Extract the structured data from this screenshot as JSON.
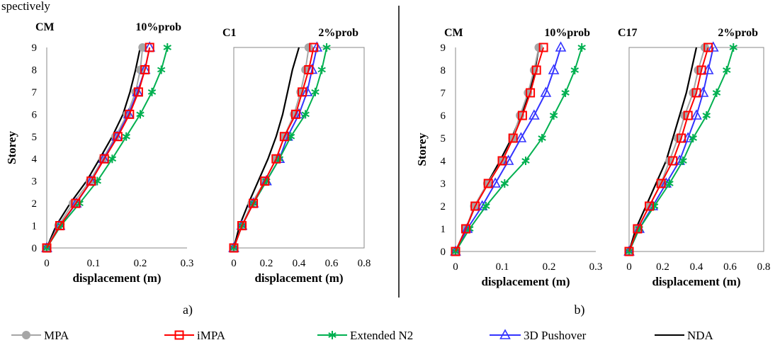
{
  "caption": "spectively",
  "panel_labels": [
    "a)",
    "b)"
  ],
  "legend": [
    {
      "name": "MPA",
      "color": "#a6a6a6",
      "marker": "circle"
    },
    {
      "name": "iMPA",
      "color": "#ff0000",
      "marker": "square"
    },
    {
      "name": "Extended N2",
      "color": "#00b050",
      "marker": "star"
    },
    {
      "name": "3D Pushover",
      "color": "#3333ff",
      "marker": "triangle"
    },
    {
      "name": "NDA",
      "color": "#000000",
      "marker": "none"
    }
  ],
  "chart_data": [
    {
      "type": "line",
      "id": "a1",
      "group": "a",
      "title_left": "CM",
      "title_right": "10%prob",
      "xlabel": "displacement (m)",
      "ylabel": "Storey",
      "xlim": [
        0,
        0.3
      ],
      "xticks": [
        "0",
        "0.1",
        "0.2",
        "0.3"
      ],
      "ylim": [
        0,
        9
      ],
      "yticks": [
        "0",
        "1",
        "2",
        "3",
        "4",
        "5",
        "6",
        "7",
        "8",
        "9"
      ],
      "frame": false,
      "series": [
        {
          "name": "MPA",
          "x": [
            0,
            0.025,
            0.056,
            0.092,
            0.12,
            0.147,
            0.172,
            0.19,
            0.2,
            0.205
          ],
          "y": [
            0,
            1,
            2,
            3,
            4,
            5,
            6,
            7,
            8,
            9
          ]
        },
        {
          "name": "iMPA",
          "x": [
            0,
            0.028,
            0.062,
            0.095,
            0.123,
            0.152,
            0.177,
            0.196,
            0.21,
            0.22
          ],
          "y": [
            0,
            1,
            2,
            3,
            4,
            5,
            6,
            7,
            8,
            9
          ]
        },
        {
          "name": "Extended N2",
          "x": [
            0,
            0.03,
            0.07,
            0.108,
            0.14,
            0.17,
            0.2,
            0.225,
            0.245,
            0.258
          ],
          "y": [
            0,
            1,
            2,
            3,
            4,
            5,
            6,
            7,
            8,
            9
          ]
        },
        {
          "name": "3D Pushover",
          "x": [
            0,
            0.028,
            0.063,
            0.095,
            0.122,
            0.15,
            0.175,
            0.194,
            0.21,
            0.22
          ],
          "y": [
            0,
            1,
            2,
            3,
            4,
            5,
            6,
            7,
            8,
            9
          ]
        },
        {
          "name": "NDA",
          "x": [
            0,
            0.02,
            0.05,
            0.085,
            0.113,
            0.14,
            0.163,
            0.178,
            0.19,
            0.2
          ],
          "y": [
            0,
            1,
            2,
            3,
            4,
            5,
            6,
            7,
            8,
            9
          ]
        }
      ]
    },
    {
      "type": "line",
      "id": "a2",
      "group": "a",
      "title_left": "C1",
      "title_right": "2%prob",
      "xlabel": "displacement (m)",
      "ylabel": "",
      "xlim": [
        0,
        0.8
      ],
      "xticks": [
        "0",
        "0.2",
        "0.4",
        "0.6",
        "0.8"
      ],
      "ylim": [
        0,
        9
      ],
      "yticks": [],
      "frame": true,
      "series": [
        {
          "name": "MPA",
          "x": [
            0,
            0.05,
            0.11,
            0.19,
            0.26,
            0.31,
            0.37,
            0.41,
            0.44,
            0.46
          ],
          "y": [
            0,
            1,
            2,
            3,
            4,
            5,
            6,
            7,
            8,
            9
          ]
        },
        {
          "name": "iMPA",
          "x": [
            0,
            0.05,
            0.12,
            0.19,
            0.26,
            0.31,
            0.38,
            0.42,
            0.46,
            0.49
          ],
          "y": [
            0,
            1,
            2,
            3,
            4,
            5,
            6,
            7,
            8,
            9
          ]
        },
        {
          "name": "Extended N2",
          "x": [
            0,
            0.05,
            0.12,
            0.2,
            0.28,
            0.35,
            0.44,
            0.5,
            0.54,
            0.57
          ],
          "y": [
            0,
            1,
            2,
            3,
            4,
            5,
            6,
            7,
            8,
            9
          ]
        },
        {
          "name": "3D Pushover",
          "x": [
            0,
            0.05,
            0.12,
            0.2,
            0.28,
            0.33,
            0.4,
            0.45,
            0.48,
            0.51
          ],
          "y": [
            0,
            1,
            2,
            3,
            4,
            5,
            6,
            7,
            8,
            9
          ]
        },
        {
          "name": "NDA",
          "x": [
            0,
            0.035,
            0.09,
            0.15,
            0.21,
            0.26,
            0.3,
            0.33,
            0.36,
            0.4
          ],
          "y": [
            0,
            1,
            2,
            3,
            4,
            5,
            6,
            7,
            8,
            9
          ]
        }
      ]
    },
    {
      "type": "line",
      "id": "b1",
      "group": "b",
      "title_left": "CM",
      "title_right": "10%prob",
      "xlabel": "displacement (m)",
      "ylabel": "Storey",
      "xlim": [
        0,
        0.3
      ],
      "xticks": [
        "0",
        "0.1",
        "0.2",
        "0.3"
      ],
      "ylim": [
        0,
        9
      ],
      "yticks": [
        "0",
        "1",
        "2",
        "3",
        "4",
        "5",
        "6",
        "7",
        "8",
        "9"
      ],
      "frame": false,
      "series": [
        {
          "name": "MPA",
          "x": [
            0,
            0.022,
            0.04,
            0.068,
            0.1,
            0.122,
            0.138,
            0.155,
            0.168,
            0.178
          ],
          "y": [
            0,
            1,
            2,
            3,
            4,
            5,
            6,
            7,
            8,
            9
          ]
        },
        {
          "name": "iMPA",
          "x": [
            0,
            0.022,
            0.042,
            0.07,
            0.1,
            0.123,
            0.143,
            0.16,
            0.173,
            0.188
          ],
          "y": [
            0,
            1,
            2,
            3,
            4,
            5,
            6,
            7,
            8,
            9
          ]
        },
        {
          "name": "Extended N2",
          "x": [
            0,
            0.03,
            0.065,
            0.105,
            0.15,
            0.185,
            0.21,
            0.235,
            0.255,
            0.27
          ],
          "y": [
            0,
            1,
            2,
            3,
            4,
            5,
            6,
            7,
            8,
            9
          ]
        },
        {
          "name": "3D Pushover",
          "x": [
            0,
            0.025,
            0.057,
            0.085,
            0.113,
            0.14,
            0.168,
            0.193,
            0.21,
            0.225
          ],
          "y": [
            0,
            1,
            2,
            3,
            4,
            5,
            6,
            7,
            8,
            9
          ]
        },
        {
          "name": "NDA",
          "x": [
            0,
            0.022,
            0.042,
            0.068,
            0.095,
            0.12,
            0.14,
            0.158,
            0.17,
            0.178
          ],
          "y": [
            0,
            1,
            2,
            3,
            4,
            5,
            6,
            7,
            8,
            9
          ]
        }
      ]
    },
    {
      "type": "line",
      "id": "b2",
      "group": "b",
      "title_left": "C17",
      "title_right": "2%prob",
      "xlabel": "displacement (m)",
      "ylabel": "",
      "xlim": [
        0,
        0.8
      ],
      "xticks": [
        "0",
        "0.2",
        "0.4",
        "0.6",
        "0.8"
      ],
      "ylim": [
        0,
        9
      ],
      "yticks": [],
      "frame": true,
      "series": [
        {
          "name": "MPA",
          "x": [
            0,
            0.05,
            0.12,
            0.19,
            0.24,
            0.29,
            0.33,
            0.38,
            0.41,
            0.45
          ],
          "y": [
            0,
            1,
            2,
            3,
            4,
            5,
            6,
            7,
            8,
            9
          ]
        },
        {
          "name": "iMPA",
          "x": [
            0,
            0.05,
            0.12,
            0.19,
            0.26,
            0.31,
            0.35,
            0.4,
            0.43,
            0.47
          ],
          "y": [
            0,
            1,
            2,
            3,
            4,
            5,
            6,
            7,
            8,
            9
          ]
        },
        {
          "name": "Extended N2",
          "x": [
            0,
            0.06,
            0.15,
            0.24,
            0.32,
            0.38,
            0.46,
            0.52,
            0.58,
            0.62
          ],
          "y": [
            0,
            1,
            2,
            3,
            4,
            5,
            6,
            7,
            8,
            9
          ]
        },
        {
          "name": "3D Pushover",
          "x": [
            0,
            0.06,
            0.14,
            0.22,
            0.3,
            0.35,
            0.4,
            0.44,
            0.47,
            0.5
          ],
          "y": [
            0,
            1,
            2,
            3,
            4,
            5,
            6,
            7,
            8,
            9
          ]
        },
        {
          "name": "NDA",
          "x": [
            0,
            0.04,
            0.1,
            0.16,
            0.22,
            0.26,
            0.3,
            0.34,
            0.37,
            0.4
          ],
          "y": [
            0,
            1,
            2,
            3,
            4,
            5,
            6,
            7,
            8,
            9
          ]
        }
      ]
    }
  ]
}
